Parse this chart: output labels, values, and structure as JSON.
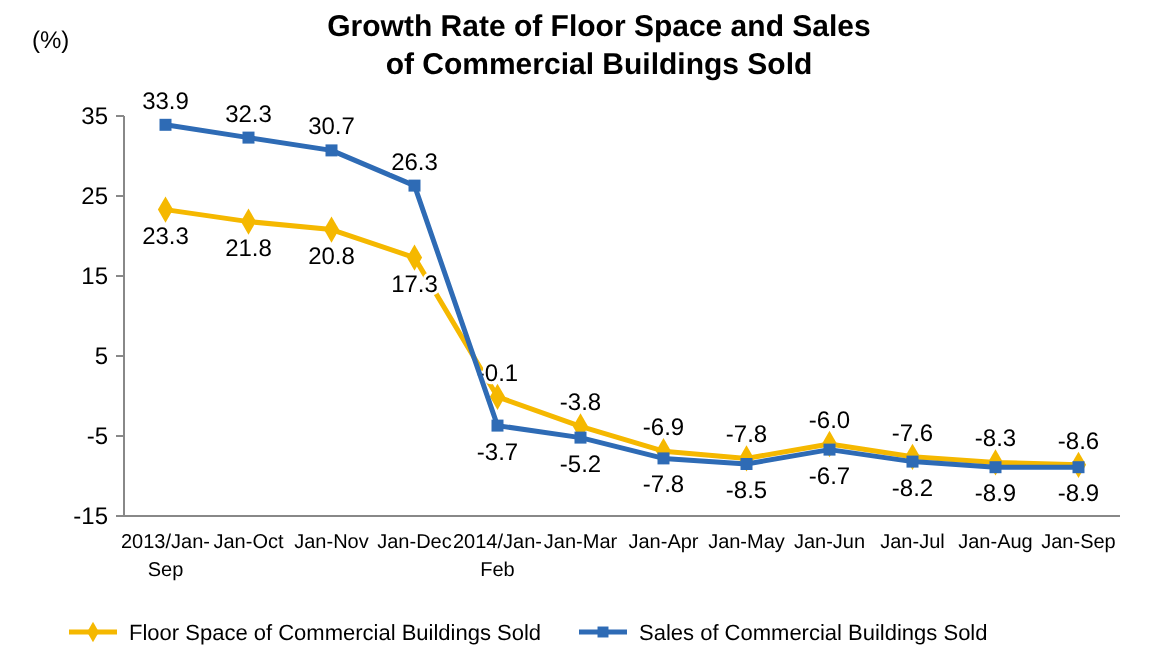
{
  "chart_data": {
    "type": "line",
    "title": "Growth Rate of Floor Space and Sales\nof Commercial Buildings Sold",
    "ylabel": "(%)",
    "categories": [
      "2013/Jan-Sep",
      "Jan-Oct",
      "Jan-Nov",
      "Jan-Dec",
      "2014/Jan-Feb",
      "Jan-Mar",
      "Jan-Apr",
      "Jan-May",
      "Jan-Jun",
      "Jan-Jul",
      "Jan-Aug",
      "Jan-Sep"
    ],
    "series": [
      {
        "name": "Floor Space of Commercial Buildings Sold",
        "color": "#f5b800",
        "marker": "diamond",
        "values": [
          23.3,
          21.8,
          20.8,
          17.3,
          -0.1,
          -3.8,
          -6.9,
          -7.8,
          -6.0,
          -7.6,
          -8.3,
          -8.6
        ],
        "value_labels": [
          "23.3",
          "21.8",
          "20.8",
          "17.3",
          "-0.1",
          "-3.8",
          "-6.9",
          "-7.8",
          "-6.0",
          "-7.6",
          "-8.3",
          "-8.6"
        ]
      },
      {
        "name": "Sales of Commercial Buildings Sold",
        "color": "#2e6bb5",
        "marker": "square",
        "values": [
          33.9,
          32.3,
          30.7,
          26.3,
          -3.7,
          -5.2,
          -7.8,
          -8.5,
          -6.7,
          -8.2,
          -8.9,
          -8.9
        ],
        "value_labels": [
          "33.9",
          "32.3",
          "30.7",
          "26.3",
          "-3.7",
          "-5.2",
          "-7.8",
          "-8.5",
          "-6.7",
          "-8.2",
          "-8.9",
          "-8.9"
        ]
      }
    ],
    "ylim": [
      -15,
      35
    ],
    "yticks": [
      -15,
      -5,
      5,
      15,
      25,
      35
    ],
    "legend": "bottom",
    "grid": false
  }
}
